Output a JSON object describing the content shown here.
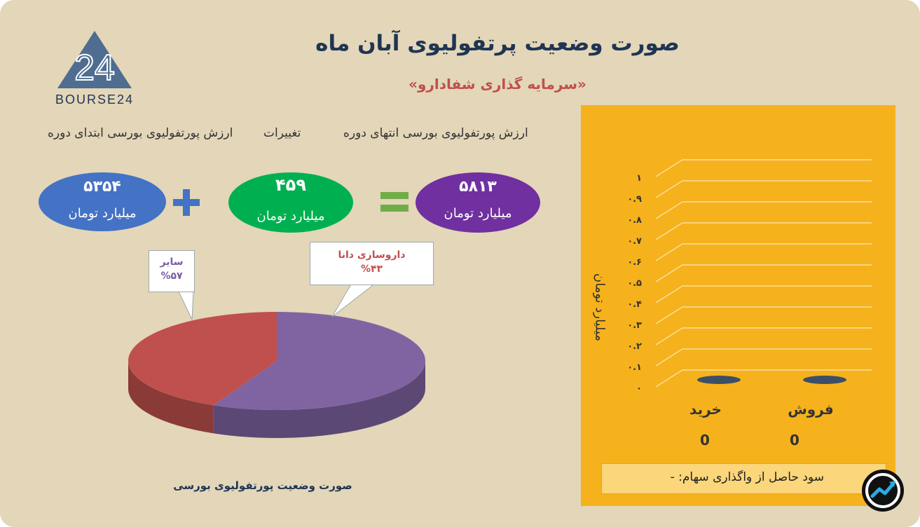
{
  "header": {
    "title": "صورت وضعیت پرتفولیوی آبان ماه",
    "subtitle": "«سرمایه گذاری شفادارو»",
    "logo_text": "BOURSE24",
    "logo_mark": "24"
  },
  "summary": {
    "start_label": "ارزش پورتفولیوی بورسی ابتدای دوره",
    "change_label": "تغییرات",
    "end_label": "ارزش پورتفولیوی بورسی انتهای دوره",
    "start_value": "۵۳۵۴",
    "change_value": "۴۵۹",
    "end_value": "۵۸۱۳",
    "unit": "میلیارد تومان",
    "plus_icon": "plus-icon",
    "equals_icon": "equals-icon"
  },
  "colors": {
    "background": "#e3d6b9",
    "title": "#1f3552",
    "subtitle": "#c0504d",
    "oval_start": "#4472c4",
    "oval_change": "#00b050",
    "oval_end": "#7030a0",
    "operator": "#4472c4",
    "equals": "#70ad47",
    "pie_other": "#8064a2",
    "pie_dana": "#c0504d",
    "panel": "#f6b21d"
  },
  "chart_data": [
    {
      "type": "pie",
      "title": "صورت وضعیت پورتفولیوی بورسی",
      "slices": [
        {
          "label": "سایر",
          "value": 57,
          "display": "%۵۷",
          "color": "#8064a2"
        },
        {
          "label": "داروسازی دانا",
          "value": 43,
          "display": "%۴۳",
          "color": "#c0504d"
        }
      ]
    },
    {
      "type": "bar",
      "ylabel": "میلیارد تومان",
      "categories": [
        "خرید",
        "فروش"
      ],
      "values": [
        0,
        0
      ],
      "value_labels": [
        "0",
        "0"
      ],
      "ylim": [
        0,
        1
      ],
      "ticks": [
        "۰",
        "۰.۱",
        "۰.۲",
        "۰.۳",
        "۰.۴",
        "۰.۵",
        "۰.۶",
        "۰.۷",
        "۰.۸",
        "۰.۹",
        "۱"
      ],
      "grid": true
    }
  ],
  "profit_note": "سود حاصل از واگذاری سهام:  -",
  "badge_icon": "trend-arrow-icon"
}
